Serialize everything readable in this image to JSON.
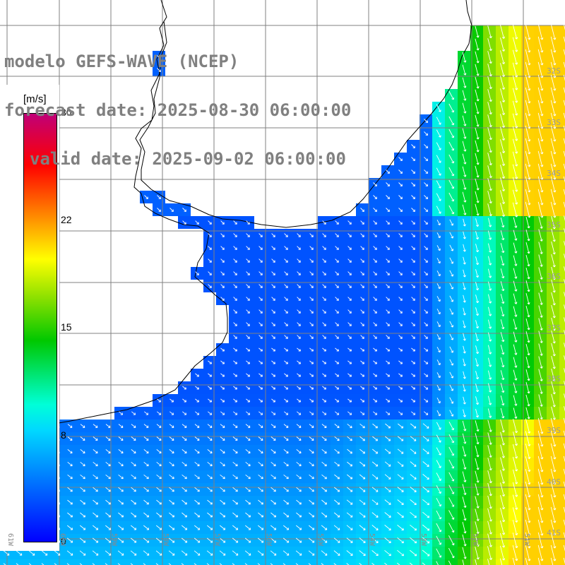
{
  "title": {
    "line1": "modelo GEFS-WAVE (NCEP)",
    "line2": "forecast date: 2025-08-30 06:00:00",
    "line3": "valid date: 2025-09-02 06:00:00"
  },
  "colorbar": {
    "unit": "[m/s]",
    "min": 0,
    "max": 30,
    "ticks": [
      "30",
      "22",
      "15",
      "8",
      "0"
    ],
    "tick_values": [
      30,
      22,
      15,
      8,
      0
    ],
    "colors": [
      "#0000ff",
      "#00d8ff",
      "#00ffd8",
      "#00c800",
      "#8ce000",
      "#ffff00",
      "#ff9600",
      "#ff0000",
      "#c00078"
    ]
  },
  "lat_labels": [
    "32S",
    "33S",
    "34S",
    "35S",
    "36S",
    "37S",
    "38S",
    "39S",
    "40S",
    "41S"
  ],
  "lon_labels": [
    "61W",
    "60W",
    "59W",
    "58W",
    "57W",
    "56W",
    "55W",
    "54W",
    "53W",
    "52W",
    "51W"
  ],
  "map": {
    "variable": "wind speed",
    "land_color": "#ffffff",
    "grid_color": "#808080",
    "coast_color": "#000000"
  }
}
